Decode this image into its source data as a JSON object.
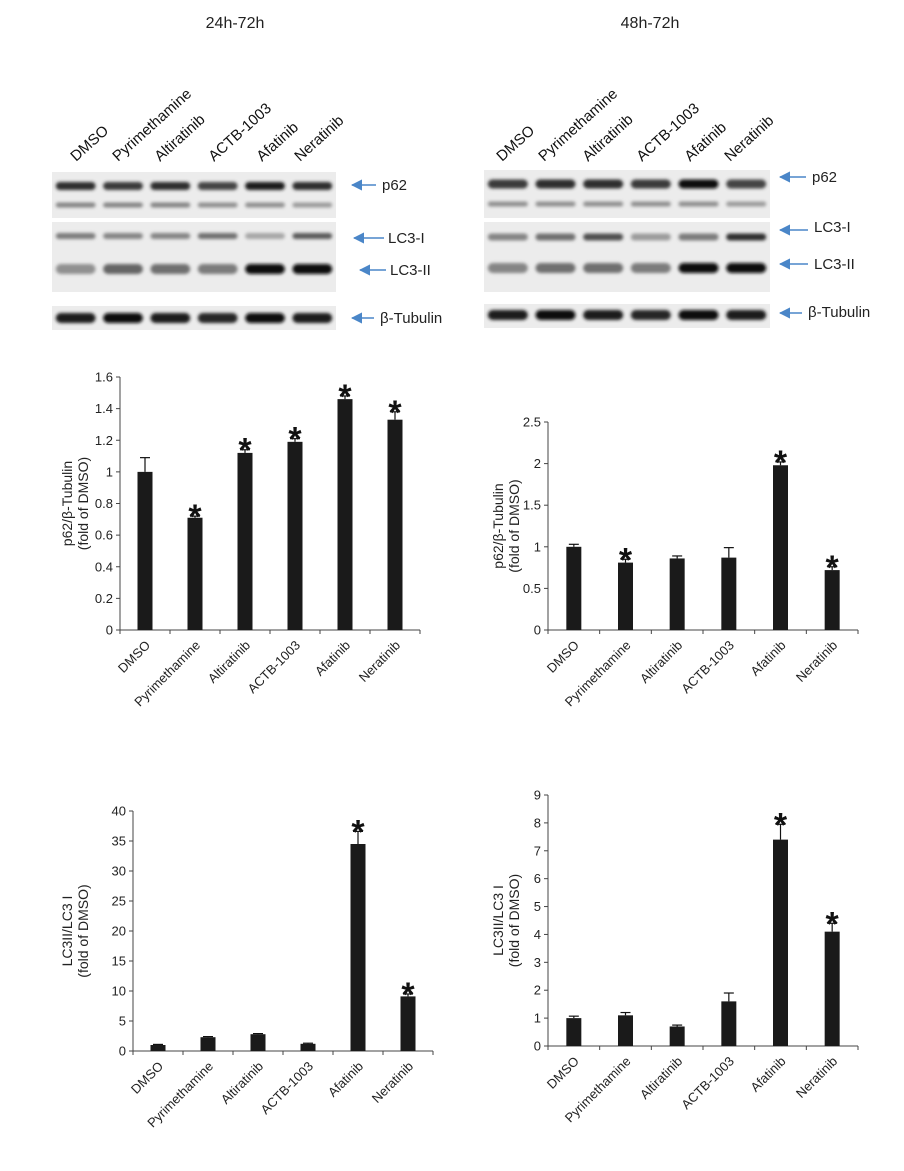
{
  "panels": [
    {
      "title": "24h-72h",
      "lanes": [
        "DMSO",
        "Pyrimethamine",
        "Altiratinib",
        "ACTB-1003",
        "Afatinib",
        "Neratinib"
      ],
      "band_labels": [
        "p62",
        "LC3-I",
        "LC3-II",
        "β-Tubulin"
      ]
    },
    {
      "title": "48h-72h",
      "lanes": [
        "DMSO",
        "Pyrimethamine",
        "Altiratinib",
        "ACTB-1003",
        "Afatinib",
        "Neratinib"
      ],
      "band_labels": [
        "p62",
        "LC3-I",
        "LC3-II",
        "β-Tubulin"
      ]
    }
  ],
  "chart_data": [
    {
      "type": "bar",
      "title": "",
      "ylabel": [
        "p62/β-Tubulin",
        "(fold of DMSO)"
      ],
      "categories": [
        "DMSO",
        "Pyrimethamine",
        "Altiratinib",
        "ACTB-1003",
        "Afatinib",
        "Neratinib"
      ],
      "values": [
        1.0,
        0.71,
        1.12,
        1.19,
        1.46,
        1.33
      ],
      "errors": [
        0.09,
        0.01,
        0.02,
        0.02,
        0.02,
        0.05
      ],
      "significant": [
        false,
        true,
        true,
        true,
        true,
        true
      ],
      "significance_mark": "*",
      "ylim": [
        0,
        1.6
      ],
      "yticks": [
        "0",
        "0.2",
        "0.4",
        "0.6",
        "0.8",
        "1",
        "1.2",
        "1.4",
        "1.6"
      ],
      "bar_color": "#1a1a1a",
      "grid": false
    },
    {
      "type": "bar",
      "title": "",
      "ylabel": [
        "p62/β-Tubulin",
        "(fold of DMSO)"
      ],
      "categories": [
        "DMSO",
        "Pyrimethamine",
        "Altiratinib",
        "ACTB-1003",
        "Afatinib",
        "Neratinib"
      ],
      "values": [
        1.0,
        0.81,
        0.86,
        0.87,
        1.98,
        0.72
      ],
      "errors": [
        0.03,
        0.04,
        0.03,
        0.12,
        0.04,
        0.04
      ],
      "significant": [
        false,
        true,
        false,
        false,
        true,
        true
      ],
      "significance_mark": "*",
      "ylim": [
        0,
        2.5
      ],
      "yticks": [
        "0",
        "0.5",
        "1",
        "1.5",
        "2",
        "2.5"
      ],
      "bar_color": "#1a1a1a",
      "grid": false
    },
    {
      "type": "bar",
      "title": "",
      "ylabel": [
        "LC3II/LC3 I",
        "(fold of DMSO)"
      ],
      "categories": [
        "DMSO",
        "Pyrimethamine",
        "Altiratinib",
        "ACTB-1003",
        "Afatinib",
        "Neratinib"
      ],
      "values": [
        1.0,
        2.3,
        2.8,
        1.2,
        34.5,
        9.1
      ],
      "errors": [
        0.1,
        0.1,
        0.1,
        0.1,
        2.1,
        0.4
      ],
      "significant": [
        false,
        false,
        false,
        false,
        true,
        true
      ],
      "significance_mark": "*",
      "ylim": [
        0,
        40
      ],
      "yticks": [
        "0",
        "5",
        "10",
        "15",
        "20",
        "25",
        "30",
        "35",
        "40"
      ],
      "bar_color": "#1a1a1a",
      "grid": false
    },
    {
      "type": "bar",
      "title": "",
      "ylabel": [
        "LC3II/LC3 I",
        "(fold of DMSO)"
      ],
      "categories": [
        "DMSO",
        "Pyrimethamine",
        "Altiratinib",
        "ACTB-1003",
        "Afatinib",
        "Neratinib"
      ],
      "values": [
        1.0,
        1.1,
        0.7,
        1.6,
        7.4,
        4.1
      ],
      "errors": [
        0.07,
        0.1,
        0.05,
        0.3,
        0.55,
        0.3
      ],
      "significant": [
        false,
        false,
        false,
        false,
        true,
        true
      ],
      "significance_mark": "*",
      "ylim": [
        0,
        9
      ],
      "yticks": [
        "0",
        "1",
        "2",
        "3",
        "4",
        "5",
        "6",
        "7",
        "8",
        "9"
      ],
      "bar_color": "#1a1a1a",
      "grid": false
    }
  ]
}
